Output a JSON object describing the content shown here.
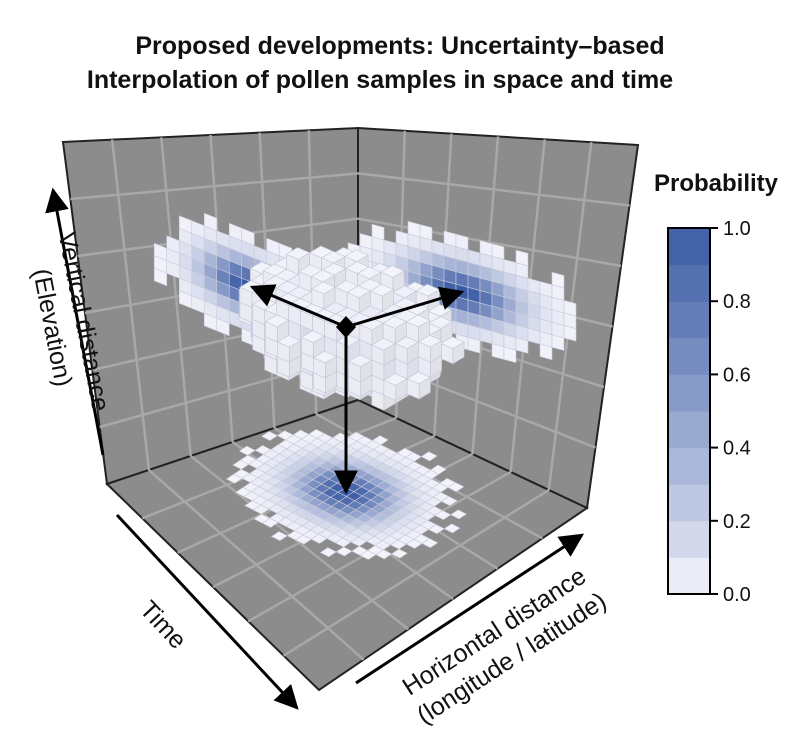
{
  "chart_data": {
    "type": "heatmap",
    "title_lines": [
      "Proposed developments: Uncertainty–based",
      "Interpolation of pollen samples in space and time"
    ],
    "axes": {
      "vertical": [
        "Vertical distance",
        "(Elevation)"
      ],
      "depth": "Time",
      "horizontal": [
        "Horizontal distance",
        "(longitude / latitude)"
      ]
    },
    "colorbar": {
      "title": "Probability",
      "range": [
        0,
        1
      ],
      "ticks": [
        "0.0",
        "0.2",
        "0.4",
        "0.6",
        "0.8",
        "1.0"
      ],
      "low_color": "#f4f4fb",
      "high_color": "#3a5aa3",
      "bands": [
        0.03,
        0.13,
        0.23,
        0.33,
        0.43,
        0.53,
        0.63,
        0.73,
        0.83,
        0.93
      ]
    },
    "panel_background": "#8c8c8c",
    "grid_color": "#a8a8a8",
    "point_marker": "diamond"
  }
}
